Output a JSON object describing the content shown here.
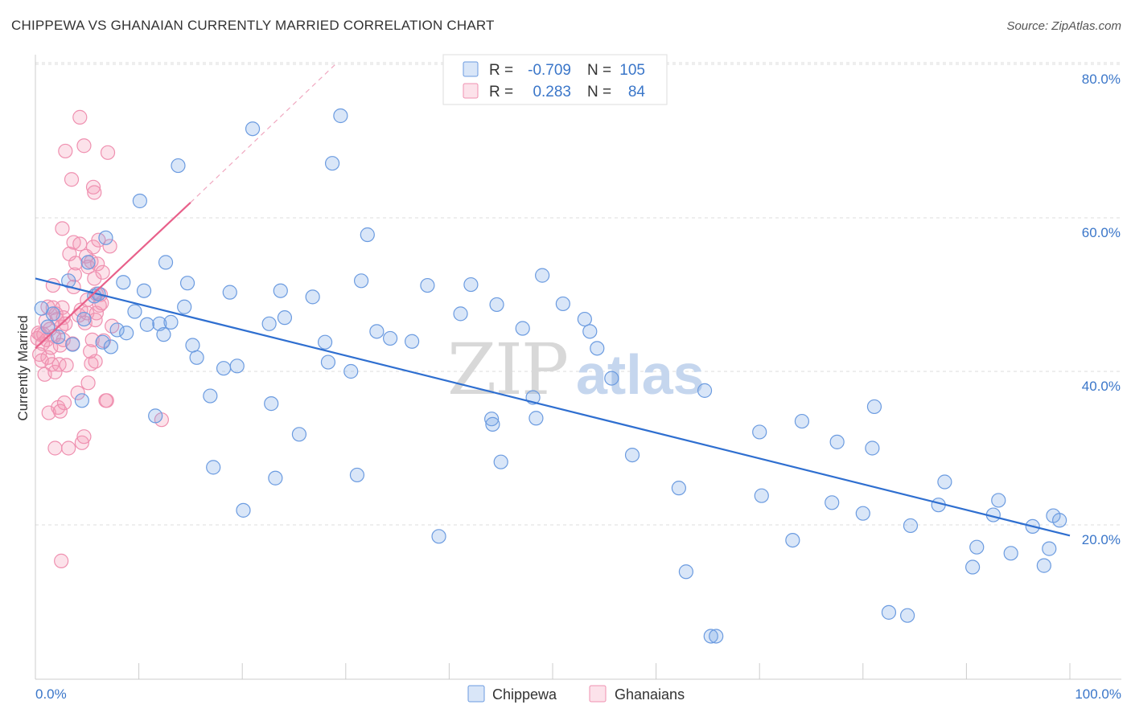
{
  "title": "CHIPPEWA VS GHANAIAN CURRENTLY MARRIED CORRELATION CHART",
  "source": "Source: ZipAtlas.com",
  "watermark": {
    "zip": "ZIP",
    "atlas": "atlas"
  },
  "colors": {
    "chippewa_fill": "rgba(120,165,230,0.28)",
    "chippewa_stroke": "#6b9be0",
    "chippewa_line": "#2f6fd0",
    "ghanaian_fill": "rgba(245,150,180,0.28)",
    "ghanaian_stroke": "#ef90b0",
    "ghanaian_line": "#e8608a",
    "grid": "#dddddd",
    "axis_text": "#3a76c9"
  },
  "legend": {
    "rows": [
      {
        "r_label": "R =",
        "r_value": "-0.709",
        "n_label": "N =",
        "n_value": "105"
      },
      {
        "r_label": "R =",
        "r_value": "0.283",
        "n_label": "N =",
        "n_value": "84"
      }
    ]
  },
  "chart_data": {
    "type": "scatter",
    "title": "CHIPPEWA VS GHANAIAN CURRENTLY MARRIED CORRELATION CHART",
    "xlabel": "",
    "ylabel": "Currently Married",
    "xlim": [
      0,
      100
    ],
    "ylim": [
      0,
      82
    ],
    "x_tick_labels": [
      "0.0%",
      "100.0%"
    ],
    "y_ticks": [
      20,
      40,
      60,
      80
    ],
    "y_tick_labels": [
      "20.0%",
      "40.0%",
      "60.0%",
      "80.0%"
    ],
    "grid": true,
    "legend_position": "top-center",
    "series": [
      {
        "name": "Chippewa",
        "R": -0.709,
        "N": 105,
        "trend": {
          "x": [
            0,
            100
          ],
          "y": [
            52.1,
            18.6
          ]
        },
        "points": [
          [
            0.6,
            48.2
          ],
          [
            1.2,
            45.8
          ],
          [
            1.7,
            47.5
          ],
          [
            2.2,
            44.5
          ],
          [
            3.2,
            51.8
          ],
          [
            3.6,
            43.5
          ],
          [
            4.5,
            36.2
          ],
          [
            4.7,
            46.8
          ],
          [
            5.1,
            54.2
          ],
          [
            5.7,
            49.8
          ],
          [
            6.1,
            50.1
          ],
          [
            6.8,
            57.4
          ],
          [
            6.5,
            43.8
          ],
          [
            7.3,
            43.2
          ],
          [
            7.9,
            45.4
          ],
          [
            8.5,
            51.6
          ],
          [
            8.8,
            45.0
          ],
          [
            9.6,
            47.8
          ],
          [
            10.1,
            62.2
          ],
          [
            10.5,
            50.5
          ],
          [
            10.8,
            46.1
          ],
          [
            11.6,
            34.2
          ],
          [
            12.0,
            46.2
          ],
          [
            12.4,
            44.8
          ],
          [
            12.6,
            54.2
          ],
          [
            13.1,
            46.4
          ],
          [
            13.8,
            66.8
          ],
          [
            14.4,
            48.4
          ],
          [
            14.7,
            51.5
          ],
          [
            15.2,
            43.4
          ],
          [
            15.6,
            41.8
          ],
          [
            16.9,
            36.8
          ],
          [
            17.2,
            27.5
          ],
          [
            18.2,
            40.4
          ],
          [
            18.8,
            50.3
          ],
          [
            19.5,
            40.7
          ],
          [
            20.1,
            21.9
          ],
          [
            21.0,
            71.6
          ],
          [
            22.6,
            46.2
          ],
          [
            22.8,
            35.8
          ],
          [
            23.2,
            26.1
          ],
          [
            23.7,
            50.5
          ],
          [
            24.1,
            47.0
          ],
          [
            25.5,
            31.8
          ],
          [
            26.8,
            49.7
          ],
          [
            28.0,
            43.8
          ],
          [
            28.3,
            41.2
          ],
          [
            28.7,
            67.1
          ],
          [
            29.5,
            73.3
          ],
          [
            30.5,
            40.0
          ],
          [
            31.1,
            26.5
          ],
          [
            31.5,
            51.8
          ],
          [
            32.1,
            57.8
          ],
          [
            33.0,
            45.2
          ],
          [
            34.3,
            44.3
          ],
          [
            36.4,
            43.9
          ],
          [
            37.9,
            51.2
          ],
          [
            39.0,
            18.5
          ],
          [
            41.1,
            47.5
          ],
          [
            42.1,
            51.3
          ],
          [
            44.1,
            33.8
          ],
          [
            44.2,
            33.1
          ],
          [
            44.6,
            48.7
          ],
          [
            45.0,
            28.2
          ],
          [
            47.1,
            45.6
          ],
          [
            48.1,
            36.6
          ],
          [
            48.4,
            33.9
          ],
          [
            49.0,
            52.5
          ],
          [
            51.0,
            48.8
          ],
          [
            53.1,
            46.8
          ],
          [
            53.6,
            45.2
          ],
          [
            54.3,
            43.0
          ],
          [
            55.7,
            39.1
          ],
          [
            57.7,
            29.1
          ],
          [
            62.2,
            24.8
          ],
          [
            62.9,
            13.9
          ],
          [
            64.7,
            37.5
          ],
          [
            65.3,
            5.5
          ],
          [
            65.8,
            5.5
          ],
          [
            70.0,
            32.1
          ],
          [
            70.2,
            23.8
          ],
          [
            73.2,
            18.0
          ],
          [
            74.1,
            33.5
          ],
          [
            77.0,
            22.9
          ],
          [
            77.5,
            30.8
          ],
          [
            80.0,
            21.5
          ],
          [
            80.9,
            30.0
          ],
          [
            81.1,
            35.4
          ],
          [
            82.5,
            8.6
          ],
          [
            84.3,
            8.2
          ],
          [
            84.6,
            19.9
          ],
          [
            87.3,
            22.6
          ],
          [
            87.9,
            25.6
          ],
          [
            90.6,
            14.5
          ],
          [
            91.0,
            17.1
          ],
          [
            92.6,
            21.3
          ],
          [
            93.1,
            23.2
          ],
          [
            94.3,
            16.3
          ],
          [
            96.4,
            19.8
          ],
          [
            97.5,
            14.7
          ],
          [
            98.0,
            16.9
          ],
          [
            98.4,
            21.2
          ],
          [
            99.0,
            20.6
          ]
        ]
      },
      {
        "name": "Ghanaians",
        "R": 0.283,
        "N": 84,
        "trend": {
          "x": [
            0,
            15
          ],
          "y": [
            43.0,
            62.0
          ]
        },
        "trend_extension": {
          "x": [
            15,
            29
          ],
          "y": [
            62.0,
            80.0
          ]
        },
        "points": [
          [
            0.2,
            44.3
          ],
          [
            0.3,
            45.0
          ],
          [
            0.4,
            42.2
          ],
          [
            0.5,
            44.8
          ],
          [
            0.6,
            41.4
          ],
          [
            0.7,
            43.6
          ],
          [
            0.8,
            44.8
          ],
          [
            0.9,
            39.6
          ],
          [
            1.0,
            46.6
          ],
          [
            1.1,
            44.1
          ],
          [
            1.2,
            41.8
          ],
          [
            1.2,
            48.4
          ],
          [
            1.3,
            34.6
          ],
          [
            1.4,
            45.5
          ],
          [
            1.5,
            43.1
          ],
          [
            1.6,
            40.9
          ],
          [
            1.7,
            48.3
          ],
          [
            1.7,
            51.2
          ],
          [
            1.8,
            44.6
          ],
          [
            1.9,
            30.0
          ],
          [
            1.9,
            39.9
          ],
          [
            2.0,
            47.5
          ],
          [
            2.1,
            46.8
          ],
          [
            2.2,
            35.3
          ],
          [
            2.3,
            40.9
          ],
          [
            2.4,
            34.8
          ],
          [
            2.4,
            43.4
          ],
          [
            2.5,
            45.8
          ],
          [
            2.5,
            15.3
          ],
          [
            2.6,
            48.3
          ],
          [
            2.6,
            58.6
          ],
          [
            2.7,
            47.0
          ],
          [
            2.7,
            44.1
          ],
          [
            2.8,
            35.9
          ],
          [
            2.9,
            68.7
          ],
          [
            2.9,
            46.2
          ],
          [
            3.0,
            40.8
          ],
          [
            3.2,
            30.0
          ],
          [
            3.3,
            55.3
          ],
          [
            3.5,
            65.0
          ],
          [
            3.6,
            43.6
          ],
          [
            3.7,
            51.0
          ],
          [
            3.7,
            56.8
          ],
          [
            3.8,
            52.6
          ],
          [
            3.9,
            54.1
          ],
          [
            4.1,
            37.2
          ],
          [
            4.2,
            47.3
          ],
          [
            4.3,
            56.6
          ],
          [
            4.3,
            73.1
          ],
          [
            4.4,
            48.0
          ],
          [
            4.5,
            30.7
          ],
          [
            4.7,
            31.5
          ],
          [
            4.7,
            69.4
          ],
          [
            4.8,
            46.3
          ],
          [
            4.9,
            55.0
          ],
          [
            5.0,
            49.3
          ],
          [
            5.0,
            47.6
          ],
          [
            5.1,
            53.6
          ],
          [
            5.1,
            38.5
          ],
          [
            5.3,
            42.6
          ],
          [
            5.4,
            54.3
          ],
          [
            5.4,
            41.0
          ],
          [
            5.5,
            44.1
          ],
          [
            5.6,
            56.2
          ],
          [
            5.6,
            64.0
          ],
          [
            5.7,
            63.3
          ],
          [
            5.7,
            52.1
          ],
          [
            5.8,
            46.7
          ],
          [
            5.8,
            41.3
          ],
          [
            5.9,
            50.1
          ],
          [
            5.9,
            47.6
          ],
          [
            6.0,
            54.0
          ],
          [
            6.1,
            57.1
          ],
          [
            6.2,
            48.6
          ],
          [
            6.3,
            50.0
          ],
          [
            6.4,
            48.9
          ],
          [
            6.5,
            52.9
          ],
          [
            6.6,
            44.0
          ],
          [
            6.8,
            36.2
          ],
          [
            6.9,
            36.2
          ],
          [
            7.0,
            68.5
          ],
          [
            7.2,
            56.3
          ],
          [
            7.4,
            45.9
          ],
          [
            12.2,
            33.7
          ]
        ]
      }
    ]
  }
}
